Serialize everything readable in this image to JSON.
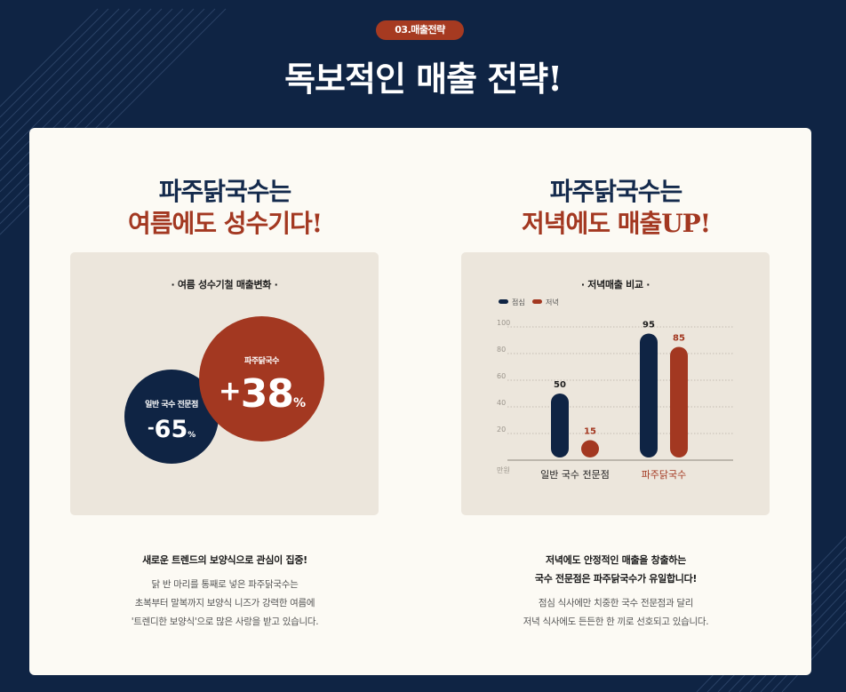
{
  "header": {
    "badge": "03.매출전략",
    "title": "독보적인 매출 전략!"
  },
  "left": {
    "heading_line1": "파주닭국수는",
    "heading_line2": "여름에도 성수기다!",
    "panel_title": "· 여름 성수기철 매출변화 ·",
    "circle_general": {
      "label": "일반 국수 전문점",
      "sign": "-",
      "value": "65",
      "unit": "%"
    },
    "circle_paju": {
      "label": "파주닭국수",
      "sign": "+",
      "value": "38",
      "unit": "%"
    },
    "desc_bold": "새로운 트렌드의 보양식으로 관심이 집중!",
    "desc_lines": [
      "닭 반 마리를 통째로 넣은 파주닭국수는",
      "초복부터 말복까지 보양식 니즈가 강력한 여름에",
      "'트렌디한 보양식'으로 많은 사랑을 받고 있습니다."
    ]
  },
  "right": {
    "heading_line1": "파주닭국수는",
    "heading_line2": "저녁에도 매출UP!",
    "panel_title": "· 저녁매출 비교 ·",
    "desc_bold_lines": [
      "저녁에도 안정적인 매출을 창출하는",
      "국수 전문점은 파주닭국수가 유일합니다!"
    ],
    "desc_lines": [
      "점심 식사에만 치중한 국수 전문점과 달리",
      "저녁 식사에도 든든한 한 끼로 선호되고 있습니다."
    ]
  },
  "colors": {
    "navy": "#0f2444",
    "accent": "#a33821",
    "panel": "#ece6dc"
  },
  "chart_data": {
    "type": "bar",
    "title": "· 저녁매출 비교 ·",
    "categories": [
      "일반 국수 전문점",
      "파주닭국수"
    ],
    "series": [
      {
        "name": "점심",
        "values": [
          50,
          95
        ],
        "color": "#0f2444"
      },
      {
        "name": "저녁",
        "values": [
          15,
          85
        ],
        "color": "#a33821"
      }
    ],
    "yticks": [
      20,
      40,
      60,
      80,
      100
    ],
    "ylim": [
      0,
      100
    ],
    "yunit": "만원",
    "legend": "top-left",
    "grid": true
  }
}
